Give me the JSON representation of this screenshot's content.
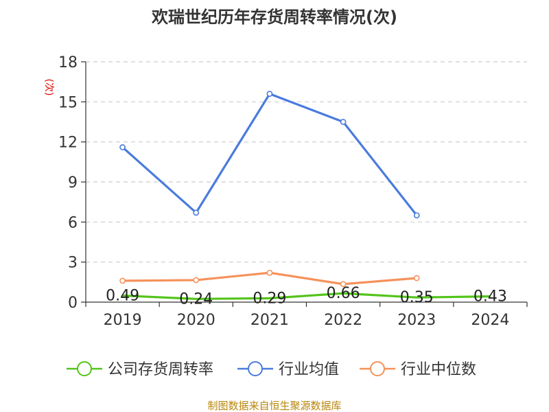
{
  "chart_data": {
    "type": "line",
    "title": "欢瑞世纪历年存货周转率情况(次)",
    "ylabel": "(次)",
    "xlabel": "",
    "categories": [
      "2019",
      "2020",
      "2021",
      "2022",
      "2023",
      "2024"
    ],
    "ylim": [
      0,
      18
    ],
    "yticks": [
      0,
      3,
      6,
      9,
      12,
      15,
      18
    ],
    "grid": true,
    "legend_position": "bottom",
    "series": [
      {
        "name": "公司存货周转率",
        "color": "#52c41a",
        "values": [
          0.49,
          0.24,
          0.29,
          0.66,
          0.35,
          0.43
        ],
        "labels": [
          "0.49",
          "0.24",
          "0.29",
          "0.66",
          "0.35",
          "0.43"
        ]
      },
      {
        "name": "行业均值",
        "color": "#4a7bdc",
        "values": [
          11.6,
          6.7,
          15.6,
          13.5,
          6.5,
          null
        ]
      },
      {
        "name": "行业中位数",
        "color": "#f5915a",
        "values": [
          1.6,
          1.65,
          2.2,
          1.35,
          1.8,
          null
        ]
      }
    ],
    "source": "制图数据来自恒生聚源数据库"
  }
}
